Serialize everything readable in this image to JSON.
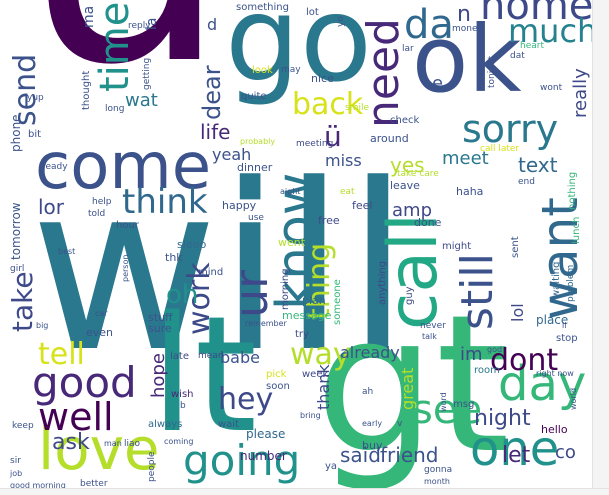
{
  "words": [
    {
      "text": "u",
      "color": "#440154"
    },
    {
      "text": "will",
      "color": "#2a788e"
    },
    {
      "text": "go",
      "color": "#2a788e"
    },
    {
      "text": "ok",
      "color": "#3b528b"
    },
    {
      "text": "gt",
      "color": "#35b779"
    },
    {
      "text": "lt",
      "color": "#21918c"
    },
    {
      "text": "come",
      "color": "#3b528b"
    },
    {
      "text": "call",
      "color": "#22a884"
    },
    {
      "text": "know",
      "color": "#2a788e"
    },
    {
      "text": "love",
      "color": "#b5de2b"
    },
    {
      "text": "day",
      "color": "#35b779"
    },
    {
      "text": "one",
      "color": "#21918c"
    },
    {
      "text": "want",
      "color": "#31688e"
    },
    {
      "text": "need",
      "color": "#482878"
    },
    {
      "text": "still",
      "color": "#3b528b"
    },
    {
      "text": "going",
      "color": "#21918c"
    },
    {
      "text": "good",
      "color": "#482878"
    },
    {
      "text": "home",
      "color": "#3e4989"
    },
    {
      "text": "da",
      "color": "#31688e"
    },
    {
      "text": "time",
      "color": "#21918c"
    },
    {
      "text": "sorry",
      "color": "#2a788e"
    },
    {
      "text": "ur",
      "color": "#3e4989"
    },
    {
      "text": "back",
      "color": "#d8e219"
    },
    {
      "text": "much",
      "color": "#26828e"
    },
    {
      "text": "send",
      "color": "#3b528b"
    },
    {
      "text": "think",
      "color": "#31688e"
    },
    {
      "text": "take",
      "color": "#3e4989"
    },
    {
      "text": "well",
      "color": "#440154"
    },
    {
      "text": "see",
      "color": "#35b779"
    },
    {
      "text": "way",
      "color": "#b5de2b"
    },
    {
      "text": "tell",
      "color": "#d8e219"
    },
    {
      "text": "hey",
      "color": "#3e4989"
    },
    {
      "text": "dont",
      "color": "#440154"
    },
    {
      "text": "work",
      "color": "#3e4989"
    },
    {
      "text": "thing",
      "color": "#b5de2b"
    },
    {
      "text": "ü",
      "color": "#482878"
    },
    {
      "text": "life",
      "color": "#482878"
    },
    {
      "text": "dear",
      "color": "#3b528b"
    },
    {
      "text": "wat",
      "color": "#2a788e"
    },
    {
      "text": "ask",
      "color": "#3e4989"
    },
    {
      "text": "lor",
      "color": "#3e4989"
    },
    {
      "text": "said",
      "color": "#3b528b"
    },
    {
      "text": "friend",
      "color": "#3b528b"
    },
    {
      "text": "let",
      "color": "#482878"
    },
    {
      "text": "night",
      "color": "#3e4989"
    },
    {
      "text": "yes",
      "color": "#b5de2b"
    },
    {
      "text": "meet",
      "color": "#2a788e"
    },
    {
      "text": "text",
      "color": "#31688e"
    },
    {
      "text": "really",
      "color": "#3e4989"
    },
    {
      "text": "miss",
      "color": "#3b528b"
    },
    {
      "text": "yeah",
      "color": "#3b528b"
    },
    {
      "text": "hope",
      "color": "#482878"
    },
    {
      "text": "babe",
      "color": "#3b528b"
    },
    {
      "text": "already",
      "color": "#3b528b"
    },
    {
      "text": "im",
      "color": "#3e4989"
    },
    {
      "text": "great",
      "color": "#b5de2b"
    },
    {
      "text": "thank",
      "color": "#3e4989"
    },
    {
      "text": "amp",
      "color": "#3e4989"
    },
    {
      "text": "oh",
      "color": "#21918c"
    },
    {
      "text": "lol",
      "color": "#3e4989"
    },
    {
      "text": "co",
      "color": "#3e4989"
    },
    {
      "text": "n",
      "color": "#3e4989"
    },
    {
      "text": "e",
      "color": "#3b528b"
    },
    {
      "text": "d",
      "color": "#3b528b"
    },
    {
      "text": "please",
      "color": "#31688e"
    },
    {
      "text": "number",
      "color": "#482878"
    },
    {
      "text": "buy",
      "color": "#3b528b"
    },
    {
      "text": "msg",
      "color": "#3b528b"
    },
    {
      "text": "hello",
      "color": "#440154"
    },
    {
      "text": "room",
      "color": "#2a788e"
    },
    {
      "text": "place",
      "color": "#31688e"
    },
    {
      "text": "stop",
      "color": "#3b528b"
    },
    {
      "text": "week",
      "color": "#3e4989"
    },
    {
      "text": "pick",
      "color": "#d8e219"
    },
    {
      "text": "soon",
      "color": "#3b528b"
    },
    {
      "text": "wait",
      "color": "#3b528b"
    },
    {
      "text": "always",
      "color": "#31688e"
    },
    {
      "text": "wish",
      "color": "#482878"
    },
    {
      "text": "late",
      "color": "#3e4989"
    },
    {
      "text": "mean",
      "color": "#3e4989"
    },
    {
      "text": "stuff",
      "color": "#3b528b"
    },
    {
      "text": "sure",
      "color": "#3b528b"
    },
    {
      "text": "even",
      "color": "#3b528b"
    },
    {
      "text": "try",
      "color": "#3e4989"
    },
    {
      "text": "message",
      "color": "#35b779"
    },
    {
      "text": "plan",
      "color": "#31688e"
    },
    {
      "text": "went",
      "color": "#b5de2b"
    },
    {
      "text": "free",
      "color": "#3e4989"
    },
    {
      "text": "feel",
      "color": "#3e4989"
    },
    {
      "text": "happy",
      "color": "#3b528b"
    },
    {
      "text": "hour",
      "color": "#3b528b"
    },
    {
      "text": "sleep",
      "color": "#31688e"
    },
    {
      "text": "thk",
      "color": "#3b528b"
    },
    {
      "text": "mind",
      "color": "#3b528b"
    },
    {
      "text": "morning",
      "color": "#3e4989"
    },
    {
      "text": "someone",
      "color": "#35b779"
    },
    {
      "text": "anything",
      "color": "#3e4989"
    },
    {
      "text": "guy",
      "color": "#3e4989"
    },
    {
      "text": "might",
      "color": "#3e4989"
    },
    {
      "text": "done",
      "color": "#3b528b"
    },
    {
      "text": "haha",
      "color": "#3b528b"
    },
    {
      "text": "leave",
      "color": "#3b528b"
    },
    {
      "text": "take care",
      "color": "#b5de2b"
    },
    {
      "text": "call later",
      "color": "#d8e219"
    },
    {
      "text": "end",
      "color": "#3b528b"
    },
    {
      "text": "sent",
      "color": "#3b528b"
    },
    {
      "text": "lunch",
      "color": "#35b779"
    },
    {
      "text": "waiting",
      "color": "#31688e"
    },
    {
      "text": "problem",
      "color": "#31688e"
    },
    {
      "text": "nothing",
      "color": "#35b779"
    },
    {
      "text": "around",
      "color": "#3b528b"
    },
    {
      "text": "check",
      "color": "#3b528b"
    },
    {
      "text": "meeting",
      "color": "#3e4989"
    },
    {
      "text": "dinner",
      "color": "#3b528b"
    },
    {
      "text": "eat",
      "color": "#b5de2b"
    },
    {
      "text": "aight",
      "color": "#3b528b"
    },
    {
      "text": "use",
      "color": "#3b528b"
    },
    {
      "text": "probably",
      "color": "#b5de2b"
    },
    {
      "text": "smile",
      "color": "#b5de2b"
    },
    {
      "text": "quite",
      "color": "#3b528b"
    },
    {
      "text": "look",
      "color": "#d8e219"
    },
    {
      "text": "nice",
      "color": "#3b528b"
    },
    {
      "text": "may",
      "color": "#3b528b"
    },
    {
      "text": "lot",
      "color": "#3b528b"
    },
    {
      "text": "ya",
      "color": "#3b528b"
    },
    {
      "text": "yo",
      "color": "#3b528b"
    },
    {
      "text": "lar",
      "color": "#3b528b"
    },
    {
      "text": "money",
      "color": "#3b528b"
    },
    {
      "text": "dat",
      "color": "#3b528b"
    },
    {
      "text": "heart",
      "color": "#35b779"
    },
    {
      "text": "wont",
      "color": "#3b528b"
    },
    {
      "text": "tonight",
      "color": "#3b528b"
    },
    {
      "text": "something",
      "color": "#3b528b"
    },
    {
      "text": "reply",
      "color": "#3b528b"
    },
    {
      "text": "getting",
      "color": "#3b528b"
    },
    {
      "text": "la",
      "color": "#3b528b"
    },
    {
      "text": "ma",
      "color": "#3b528b"
    },
    {
      "text": "thought",
      "color": "#3b528b"
    },
    {
      "text": "long",
      "color": "#3b528b"
    },
    {
      "text": "phone",
      "color": "#3b528b"
    },
    {
      "text": "tomorrow",
      "color": "#3b528b"
    },
    {
      "text": "bit",
      "color": "#3b528b"
    },
    {
      "text": "yup",
      "color": "#3b528b"
    },
    {
      "text": "ready",
      "color": "#3b528b"
    },
    {
      "text": "told",
      "color": "#3b528b"
    },
    {
      "text": "help",
      "color": "#3b528b"
    },
    {
      "text": "best",
      "color": "#3b528b"
    },
    {
      "text": "girl",
      "color": "#3b528b"
    },
    {
      "text": "big",
      "color": "#3b528b"
    },
    {
      "text": "car",
      "color": "#3b528b"
    },
    {
      "text": "person",
      "color": "#3b528b"
    },
    {
      "text": "keep",
      "color": "#3b528b"
    },
    {
      "text": "sir",
      "color": "#3b528b"
    },
    {
      "text": "man",
      "color": "#3b528b"
    },
    {
      "text": "liao",
      "color": "#3b528b"
    },
    {
      "text": "coming",
      "color": "#3b528b"
    },
    {
      "text": "people",
      "color": "#3b528b"
    },
    {
      "text": "better",
      "color": "#3b528b"
    },
    {
      "text": "good morning",
      "color": "#3b528b"
    },
    {
      "text": "job",
      "color": "#3b528b"
    },
    {
      "text": "b",
      "color": "#3b528b"
    },
    {
      "text": "ah",
      "color": "#3b528b"
    },
    {
      "text": "bring",
      "color": "#3b528b"
    },
    {
      "text": "early",
      "color": "#3b528b"
    },
    {
      "text": "gonna",
      "color": "#3b528b"
    },
    {
      "text": "month",
      "color": "#3b528b"
    },
    {
      "text": "v",
      "color": "#3b528b"
    },
    {
      "text": "word",
      "color": "#3b528b"
    },
    {
      "text": "world",
      "color": "#3b528b"
    },
    {
      "text": "right now",
      "color": "#3b528b"
    },
    {
      "text": "god",
      "color": "#3b528b"
    },
    {
      "text": "ll",
      "color": "#3b528b"
    },
    {
      "text": "never",
      "color": "#3b528b"
    },
    {
      "text": "talk",
      "color": "#3b528b"
    },
    {
      "text": "remember",
      "color": "#3b528b"
    }
  ]
}
